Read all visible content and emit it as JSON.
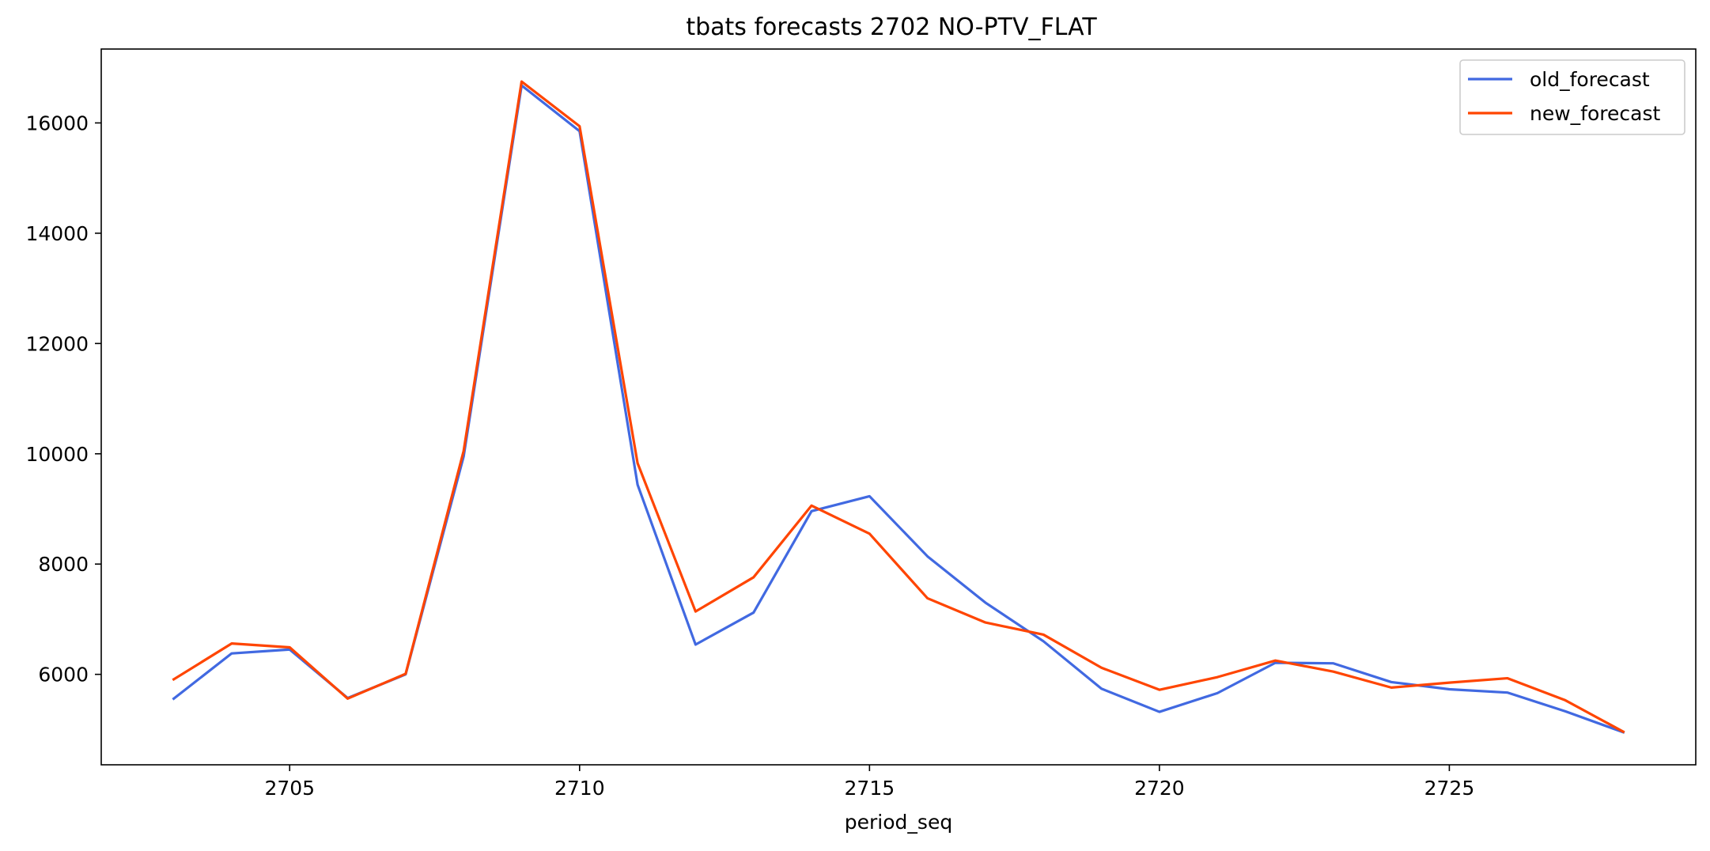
{
  "chart_data": {
    "type": "line",
    "title": "tbats forecasts 2702 NO-PTV_FLAT",
    "xlabel": "period_seq",
    "ylabel": "",
    "x": [
      2703,
      2704,
      2705,
      2706,
      2707,
      2708,
      2709,
      2710,
      2711,
      2712,
      2713,
      2714,
      2715,
      2716,
      2717,
      2718,
      2719,
      2720,
      2721,
      2722,
      2723,
      2724,
      2725,
      2726,
      2727,
      2728
    ],
    "series": [
      {
        "name": "old_forecast",
        "color": "#4169e1",
        "values": [
          5560,
          6380,
          6450,
          5570,
          6000,
          9950,
          16680,
          15850,
          9440,
          6540,
          7120,
          8960,
          9230,
          8140,
          7300,
          6600,
          5740,
          5320,
          5660,
          6210,
          6200,
          5860,
          5730,
          5670,
          5330,
          4950
        ]
      },
      {
        "name": "new_forecast",
        "color": "#ff4500",
        "values": [
          5910,
          6560,
          6490,
          5560,
          6010,
          10050,
          16750,
          15940,
          9830,
          7140,
          7760,
          9060,
          8550,
          7380,
          6940,
          6720,
          6120,
          5720,
          5950,
          6250,
          6050,
          5760,
          5850,
          5930,
          5530,
          4960
        ]
      }
    ],
    "xticks": [
      2705,
      2710,
      2715,
      2720,
      2725
    ],
    "yticks": [
      6000,
      8000,
      10000,
      12000,
      14000,
      16000
    ],
    "xlim": [
      2701.75,
      2729.25
    ],
    "ylim": [
      4360,
      17340
    ],
    "grid": false,
    "legend_position": "top-right"
  }
}
